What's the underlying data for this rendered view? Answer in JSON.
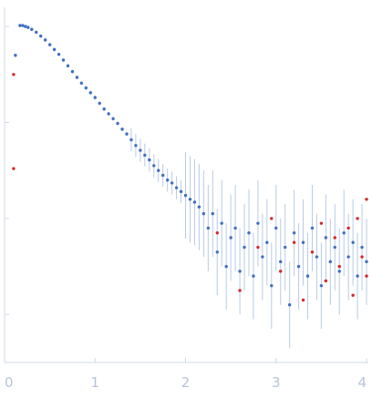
{
  "chart_data": {
    "type": "scatter",
    "title": "",
    "xlabel": "",
    "ylabel": "",
    "xlim": [
      0,
      4.02
    ],
    "ylim_log10": [
      -5.5,
      -1.8
    ],
    "y_scale": "log",
    "grid": false,
    "x_ticks": [
      {
        "value": 0,
        "label": "0"
      },
      {
        "value": 1,
        "label": "1"
      },
      {
        "value": 2,
        "label": "2"
      },
      {
        "value": 3,
        "label": "3"
      },
      {
        "value": 4,
        "label": "4"
      }
    ],
    "y_ticks_log10": [
      -5,
      -4,
      -3,
      -2
    ],
    "colors": {
      "axis": "#d0d8e6",
      "tick_label": "#b7c3d9",
      "point": "#3f6fbf",
      "outlier": "#d62728",
      "error_bar": "#b8cbe6"
    },
    "series": [
      {
        "role": "data",
        "points_log10": [
          [
            0.12,
            -2.3
          ],
          [
            0.17,
            -1.99
          ],
          [
            0.2,
            -1.99
          ],
          [
            0.23,
            -2.0
          ],
          [
            0.26,
            -2.01
          ],
          [
            0.3,
            -2.03
          ],
          [
            0.35,
            -2.06
          ],
          [
            0.4,
            -2.1
          ],
          [
            0.45,
            -2.14
          ],
          [
            0.5,
            -2.19
          ],
          [
            0.55,
            -2.24
          ],
          [
            0.6,
            -2.29
          ],
          [
            0.65,
            -2.35
          ],
          [
            0.7,
            -2.41
          ],
          [
            0.75,
            -2.47
          ],
          [
            0.8,
            -2.53
          ],
          [
            0.85,
            -2.59
          ],
          [
            0.9,
            -2.64
          ],
          [
            0.95,
            -2.69
          ],
          [
            1.0,
            -2.74
          ],
          [
            1.05,
            -2.8
          ],
          [
            1.1,
            -2.86
          ],
          [
            1.15,
            -2.91
          ],
          [
            1.2,
            -2.96
          ],
          [
            1.25,
            -3.01
          ],
          [
            1.3,
            -3.07
          ],
          [
            1.35,
            -3.12
          ],
          [
            1.4,
            -3.18
          ],
          [
            1.45,
            -3.24
          ],
          [
            1.5,
            -3.29
          ],
          [
            1.55,
            -3.34
          ],
          [
            1.6,
            -3.39
          ],
          [
            1.65,
            -3.45
          ],
          [
            1.7,
            -3.5
          ],
          [
            1.75,
            -3.55
          ],
          [
            1.8,
            -3.6
          ],
          [
            1.85,
            -3.63
          ],
          [
            1.9,
            -3.68
          ],
          [
            1.95,
            -3.72
          ],
          [
            2.0,
            -3.76
          ],
          [
            2.05,
            -3.8
          ],
          [
            2.1,
            -3.83
          ],
          [
            2.15,
            -3.88
          ],
          [
            2.2,
            -3.95
          ],
          [
            2.25,
            -4.1
          ],
          [
            2.3,
            -3.95
          ],
          [
            2.35,
            -4.35
          ],
          [
            2.4,
            -4.05
          ],
          [
            2.45,
            -4.5
          ],
          [
            2.5,
            -4.2
          ],
          [
            2.55,
            -4.1
          ],
          [
            2.6,
            -4.55
          ],
          [
            2.65,
            -4.3
          ],
          [
            2.7,
            -4.15
          ],
          [
            2.75,
            -4.6
          ],
          [
            2.8,
            -4.05
          ],
          [
            2.85,
            -4.4
          ],
          [
            2.9,
            -4.25
          ],
          [
            2.95,
            -4.7
          ],
          [
            3.0,
            -4.1
          ],
          [
            3.05,
            -4.45
          ],
          [
            3.1,
            -4.3
          ],
          [
            3.15,
            -4.9
          ],
          [
            3.2,
            -4.15
          ],
          [
            3.25,
            -4.5
          ],
          [
            3.3,
            -4.25
          ],
          [
            3.35,
            -4.6
          ],
          [
            3.4,
            -4.1
          ],
          [
            3.45,
            -4.4
          ],
          [
            3.5,
            -4.7
          ],
          [
            3.55,
            -4.2
          ],
          [
            3.6,
            -4.45
          ],
          [
            3.65,
            -4.3
          ],
          [
            3.7,
            -4.55
          ],
          [
            3.75,
            -4.15
          ],
          [
            3.8,
            -4.4
          ],
          [
            3.85,
            -4.25
          ],
          [
            3.9,
            -4.6
          ],
          [
            3.95,
            -4.3
          ],
          [
            4.0,
            -4.45
          ]
        ]
      },
      {
        "role": "outliers",
        "points_log10": [
          [
            0.1,
            -2.5
          ],
          [
            0.1,
            -3.48
          ],
          [
            2.35,
            -4.15
          ],
          [
            2.6,
            -4.75
          ],
          [
            2.8,
            -4.3
          ],
          [
            2.95,
            -4.0
          ],
          [
            3.05,
            -4.55
          ],
          [
            3.2,
            -4.25
          ],
          [
            3.3,
            -4.85
          ],
          [
            3.4,
            -4.35
          ],
          [
            3.5,
            -4.05
          ],
          [
            3.55,
            -4.65
          ],
          [
            3.65,
            -4.2
          ],
          [
            3.7,
            -4.5
          ],
          [
            3.8,
            -4.1
          ],
          [
            3.85,
            -4.8
          ],
          [
            3.9,
            -4.0
          ],
          [
            3.95,
            -4.4
          ],
          [
            4.0,
            -3.8
          ],
          [
            4.0,
            -4.6
          ]
        ]
      }
    ]
  }
}
